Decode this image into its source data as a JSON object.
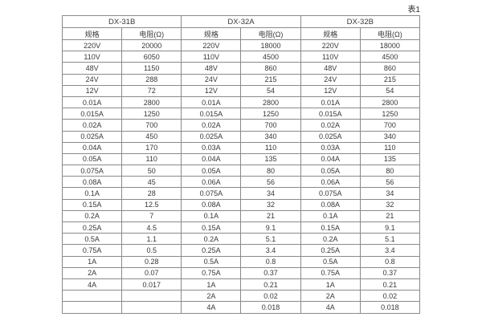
{
  "caption": "表1",
  "table": {
    "groups": [
      {
        "name": "DX-31B"
      },
      {
        "name": "DX-32A"
      },
      {
        "name": "DX-32B"
      }
    ],
    "subheaders": {
      "spec": "规格",
      "resistance": "电阻(Ω)"
    },
    "rows": [
      [
        [
          "220V",
          "20000"
        ],
        [
          "220V",
          "18000"
        ],
        [
          "220V",
          "18000"
        ]
      ],
      [
        [
          "110V",
          "6050"
        ],
        [
          "110V",
          "4500"
        ],
        [
          "110V",
          "4500"
        ]
      ],
      [
        [
          "48V",
          "1150"
        ],
        [
          "48V",
          "860"
        ],
        [
          "48V",
          "860"
        ]
      ],
      [
        [
          "24V",
          "288"
        ],
        [
          "24V",
          "215"
        ],
        [
          "24V",
          "215"
        ]
      ],
      [
        [
          "12V",
          "72"
        ],
        [
          "12V",
          "54"
        ],
        [
          "12V",
          "54"
        ]
      ],
      [
        [
          "0.01A",
          "2800"
        ],
        [
          "0.01A",
          "2800"
        ],
        [
          "0.01A",
          "2800"
        ]
      ],
      [
        [
          "0.015A",
          "1250"
        ],
        [
          "0.015A",
          "1250"
        ],
        [
          "0.015A",
          "1250"
        ]
      ],
      [
        [
          "0.02A",
          "700"
        ],
        [
          "0.02A",
          "700"
        ],
        [
          "0.02A",
          "700"
        ]
      ],
      [
        [
          "0.025A",
          "450"
        ],
        [
          "0.025A",
          "340"
        ],
        [
          "0.025A",
          "340"
        ]
      ],
      [
        [
          "0.04A",
          "170"
        ],
        [
          "0.03A",
          "110"
        ],
        [
          "0.03A",
          "110"
        ]
      ],
      [
        [
          "0.05A",
          "110"
        ],
        [
          "0.04A",
          "135"
        ],
        [
          "0.04A",
          "135"
        ]
      ],
      [
        [
          "0.075A",
          "50"
        ],
        [
          "0.05A",
          "80"
        ],
        [
          "0.05A",
          "80"
        ]
      ],
      [
        [
          "0.08A",
          "45"
        ],
        [
          "0.06A",
          "56"
        ],
        [
          "0.06A",
          "56"
        ]
      ],
      [
        [
          "0.1A",
          "28"
        ],
        [
          "0.075A",
          "34"
        ],
        [
          "0.075A",
          "34"
        ]
      ],
      [
        [
          "0.15A",
          "12.5"
        ],
        [
          "0.08A",
          "32"
        ],
        [
          "0.08A",
          "32"
        ]
      ],
      [
        [
          "0.2A",
          "7"
        ],
        [
          "0.1A",
          "21"
        ],
        [
          "0.1A",
          "21"
        ]
      ],
      [
        [
          "0.25A",
          "4.5"
        ],
        [
          "0.15A",
          "9.1"
        ],
        [
          "0.15A",
          "9.1"
        ]
      ],
      [
        [
          "0.5A",
          "1.1"
        ],
        [
          "0.2A",
          "5.1"
        ],
        [
          "0.2A",
          "5.1"
        ]
      ],
      [
        [
          "0.75A",
          "0.5"
        ],
        [
          "0.25A",
          "3.4"
        ],
        [
          "0.25A",
          "3.4"
        ]
      ],
      [
        [
          "1A",
          "0.28"
        ],
        [
          "0.5A",
          "0.8"
        ],
        [
          "0.5A",
          "0.8"
        ]
      ],
      [
        [
          "2A",
          "0.07"
        ],
        [
          "0.75A",
          "0.37"
        ],
        [
          "0.75A",
          "0.37"
        ]
      ],
      [
        [
          "4A",
          "0.017"
        ],
        [
          "1A",
          "0.21"
        ],
        [
          "1A",
          "0.21"
        ]
      ],
      [
        [
          "",
          ""
        ],
        [
          "2A",
          "0.02"
        ],
        [
          "2A",
          "0.02"
        ]
      ],
      [
        [
          "",
          ""
        ],
        [
          "4A",
          "0.018"
        ],
        [
          "4A",
          "0.018"
        ]
      ]
    ]
  },
  "colors": {
    "border": "#8a8a8a",
    "text": "#383838",
    "background": "#ffffff"
  }
}
